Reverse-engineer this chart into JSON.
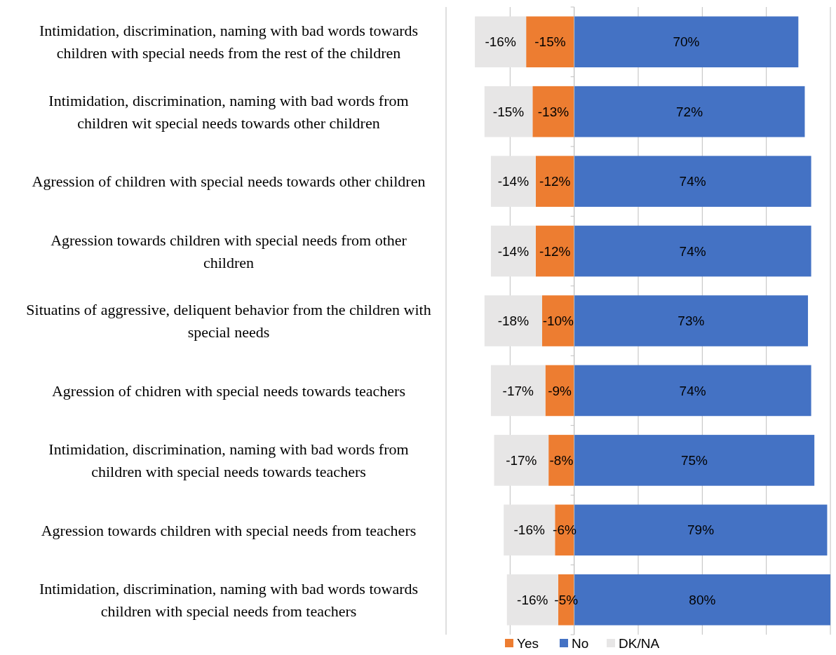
{
  "chart_data": {
    "type": "bar",
    "orientation": "horizontal",
    "stacked": true,
    "categories": [
      "Intimidation, discrimination, naming with bad words towards children with special needs from the rest of the children",
      "Intimidation, discrimination, naming with bad words from children wit special needs towards other children",
      "Agression of children with special needs towards other children",
      "Agression towards children with special needs from other children",
      "Situatins of aggressive, deliquent behavior from the children with special needs",
      "Agression of chidren with special needs towards teachers",
      "Intimidation, discrimination, naming with bad words from children with special needs towards teachers",
      "Agression towards children with special needs from teachers",
      "Intimidation, discrimination, naming with bad words towards children with special needs from teachers"
    ],
    "series": [
      {
        "name": "Yes",
        "color": "#ed7d31",
        "values": [
          -15,
          -13,
          -12,
          -12,
          -10,
          -9,
          -8,
          -6,
          -5
        ],
        "value_labels": [
          "-15%",
          "-13%",
          "-12%",
          "-12%",
          "-10%",
          "-9%",
          "-8%",
          "-6%",
          "-5%"
        ]
      },
      {
        "name": "No",
        "color": "#4472c4",
        "values": [
          70,
          72,
          74,
          74,
          73,
          74,
          75,
          79,
          80
        ],
        "value_labels": [
          "70%",
          "72%",
          "74%",
          "74%",
          "73%",
          "74%",
          "75%",
          "79%",
          "80%"
        ]
      },
      {
        "name": "DK/NA",
        "color": "#e7e6e6",
        "values": [
          -16,
          -15,
          -14,
          -14,
          -18,
          -17,
          -17,
          -16,
          -16
        ],
        "value_labels": [
          "-16%",
          "-15%",
          "-14%",
          "-14%",
          "-18%",
          "-17%",
          "-17%",
          "-16%",
          "-16%"
        ]
      }
    ],
    "xlim": [
      -40,
      80
    ],
    "xticks": [
      {
        "value": -40,
        "label": null
      },
      {
        "value": -20,
        "label": null
      },
      {
        "value": 0,
        "label": null
      },
      {
        "value": 20,
        "label": null
      },
      {
        "value": 40,
        "label": null
      },
      {
        "value": 60,
        "label": null
      },
      {
        "value": 80,
        "label": null
      }
    ],
    "grid": "x",
    "legend": "bottom"
  }
}
